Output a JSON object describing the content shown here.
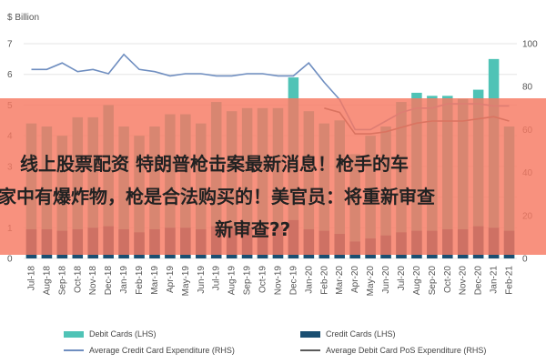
{
  "chart_data": {
    "type": "bar",
    "left_axis_label": "$ Billion",
    "left_ylim": [
      0,
      7
    ],
    "left_ticks": [
      "0",
      "1",
      "2",
      "3",
      "4",
      "5",
      "6",
      "7"
    ],
    "right_ylim": [
      0,
      100
    ],
    "right_ticks": [
      "0",
      "20",
      "40",
      "60",
      "80",
      "100"
    ],
    "categories": [
      "Jul-18",
      "Aug-18",
      "Sep-18",
      "Oct-18",
      "Nov-18",
      "Dec-18",
      "Jan-19",
      "Feb-19",
      "Mar-19",
      "Apr-19",
      "May-19",
      "Jun-19",
      "Jul-19",
      "Aug-19",
      "Sep-19",
      "Oct-19",
      "Nov-19",
      "Dec-19",
      "Jan-20",
      "Feb-20",
      "Mar-20",
      "Apr-20",
      "May-20",
      "Jun-20",
      "Jul-20",
      "Aug-20",
      "Sep-20",
      "Oct-20",
      "Nov-20",
      "Dec-20",
      "Jan-21",
      "Feb-21"
    ],
    "x_tick_labels": [
      "Jul-18",
      "",
      "Sep-18",
      "",
      "Nov-18",
      "",
      "Jan-19",
      "",
      "Mar-19",
      "",
      "May-19",
      "",
      "Jul-19",
      "",
      "Sep-19",
      "",
      "Nov-19",
      "",
      "Jan-20",
      "",
      "Mar-20",
      "",
      "May-20",
      "",
      "Jul-20",
      "",
      "Sep-20",
      "",
      "Nov-20",
      "",
      "Jan-21",
      ""
    ],
    "x_tick_labels_shown": [
      "Jul-18",
      "Aug-18",
      "Sep-18",
      "Oct-18",
      "Nov-18",
      "Dec-18",
      "Jan-19",
      "Feb-19",
      "Mar-19",
      "Apr-19",
      "May-19",
      "Jun-19",
      "Jul-19",
      "Aug-19",
      "Sep-19",
      "Oct-19",
      "Nov-19",
      "Dec-19",
      "Jan-20",
      "Feb-20",
      "Mar-20",
      "Apr-20",
      "May-20",
      "Jun-20",
      "Jul-20",
      "Aug-20",
      "Sep-20",
      "Oct-20",
      "Nov-20",
      "Dec-20",
      "Jan-21",
      "Feb-21"
    ],
    "series": [
      {
        "name": "Debit Cards (LHS)",
        "axis": "left",
        "color": "#4fc3b6",
        "values": [
          4.4,
          4.3,
          4.0,
          4.6,
          4.6,
          5.0,
          4.3,
          4.0,
          4.3,
          4.7,
          4.7,
          4.4,
          5.1,
          4.8,
          4.9,
          4.9,
          4.9,
          5.9,
          4.8,
          4.4,
          4.5,
          3.4,
          4.0,
          4.3,
          5.1,
          5.4,
          5.3,
          5.3,
          5.2,
          5.5,
          6.5,
          4.3
        ]
      },
      {
        "name": "Credit Cards (LHS)",
        "axis": "left",
        "color": "#1a4f72",
        "values": [
          0.95,
          0.95,
          0.9,
          0.95,
          1.0,
          1.05,
          0.95,
          0.85,
          0.95,
          1.0,
          1.0,
          0.95,
          1.05,
          1.0,
          1.0,
          1.0,
          1.05,
          1.25,
          0.95,
          0.9,
          0.8,
          0.55,
          0.65,
          0.75,
          0.85,
          0.9,
          0.9,
          0.95,
          0.95,
          1.05,
          1.0,
          0.9
        ]
      },
      {
        "name": "Average Credit Card Expenditure (RHS)",
        "axis": "right",
        "color": "#6f8ec0",
        "values": [
          88,
          88,
          91,
          87,
          88,
          86,
          95,
          88,
          87,
          85,
          86,
          86,
          85,
          85,
          86,
          86,
          85,
          85,
          91,
          82,
          74,
          60,
          60,
          64,
          68,
          70,
          70,
          72,
          72,
          72,
          71,
          71
        ]
      },
      {
        "name": "Average Debit Card PoS Expenditure (RHS)",
        "axis": "right",
        "color": "#5a5a5a",
        "values": [
          null,
          null,
          null,
          null,
          null,
          null,
          null,
          null,
          null,
          null,
          null,
          null,
          null,
          null,
          null,
          null,
          null,
          null,
          null,
          70,
          68,
          58,
          58,
          59,
          61,
          63,
          64,
          64,
          64,
          65,
          66,
          64
        ]
      }
    ],
    "legend_position": "bottom",
    "grid": true
  },
  "legend": {
    "debit_cards": "Debit Cards (LHS)",
    "credit_cards": "Credit Cards (LHS)",
    "avg_credit": "Average Credit Card Expenditure (RHS)",
    "avg_debit_pos": "Average Debit Card PoS Expenditure (RHS)"
  },
  "overlay": {
    "line1": "线上股票配资 特朗普枪击案最新消息！枪手的车",
    "line2": "家中有爆炸物，枪是合法购买的！美官员：将重新审查",
    "line3": "新审查??"
  },
  "colors": {
    "banner": "#f67961",
    "grid": "#e6e6e6"
  }
}
